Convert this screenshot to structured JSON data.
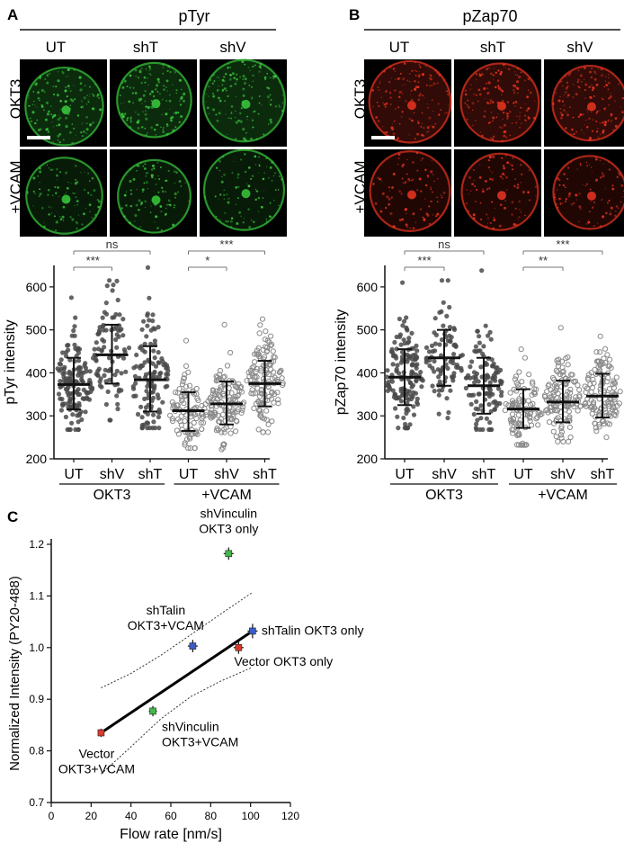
{
  "panel_letters": {
    "a": "A",
    "b": "B",
    "c": "C"
  },
  "colors": {
    "green_channel": "#36c23a",
    "red_channel": "#e0321f",
    "marker_green": "#43b649",
    "marker_blue": "#3a5cc4",
    "marker_red": "#d83a2c",
    "dot_dark": "#4a4a4a",
    "dot_open": "#8a8a8a"
  },
  "panel_a": {
    "title": "pTyr",
    "columns": [
      "UT",
      "shT",
      "shV"
    ],
    "rows": [
      "OKT3",
      "+VCAM"
    ]
  },
  "panel_b": {
    "title": "pZap70",
    "columns": [
      "UT",
      "shT",
      "shV"
    ],
    "rows": [
      "OKT3",
      "+VCAM"
    ]
  },
  "chart_data": [
    {
      "type": "scatter",
      "title": "",
      "xlabel": "",
      "ylabel": "pTyr intensity",
      "ylim": [
        200,
        650
      ],
      "yticks": [
        200,
        300,
        400,
        500,
        600
      ],
      "categories": [
        "UT",
        "shV",
        "shT",
        "UT",
        "shV",
        "shT"
      ],
      "groups": [
        {
          "label": "OKT3",
          "span": [
            0,
            2
          ]
        },
        {
          "label": "+VCAM",
          "span": [
            3,
            5
          ]
        }
      ],
      "series": [
        {
          "category": "UT",
          "group": "OKT3",
          "marker": "filled",
          "mean": 373,
          "sd_low": 315,
          "sd_high": 435,
          "min": 268,
          "max": 575,
          "n": 150,
          "seed": 11
        },
        {
          "category": "shV",
          "group": "OKT3",
          "marker": "filled",
          "mean": 442,
          "sd_low": 375,
          "sd_high": 512,
          "min": 290,
          "max": 615,
          "n": 90,
          "seed": 23
        },
        {
          "category": "shT",
          "group": "OKT3",
          "marker": "filled",
          "mean": 384,
          "sd_low": 310,
          "sd_high": 462,
          "min": 272,
          "max": 645,
          "n": 120,
          "seed": 37
        },
        {
          "category": "UT",
          "group": "+VCAM",
          "marker": "open",
          "mean": 312,
          "sd_low": 265,
          "sd_high": 355,
          "min": 225,
          "max": 475,
          "n": 100,
          "seed": 41
        },
        {
          "category": "shV",
          "group": "+VCAM",
          "marker": "open",
          "mean": 328,
          "sd_low": 280,
          "sd_high": 380,
          "min": 222,
          "max": 512,
          "n": 130,
          "seed": 53
        },
        {
          "category": "shT",
          "group": "+VCAM",
          "marker": "open",
          "mean": 375,
          "sd_low": 322,
          "sd_high": 428,
          "min": 262,
          "max": 525,
          "n": 130,
          "seed": 67
        }
      ],
      "significance": [
        {
          "label": "ns",
          "from": 0,
          "to": 2
        },
        {
          "label": "***",
          "from": 0,
          "to": 1
        },
        {
          "label": "***",
          "from": 3,
          "to": 5
        },
        {
          "label": "*",
          "from": 3,
          "to": 4
        }
      ]
    },
    {
      "type": "scatter",
      "title": "",
      "xlabel": "",
      "ylabel": "pZap70 intensity",
      "ylim": [
        200,
        650
      ],
      "yticks": [
        200,
        300,
        400,
        500,
        600
      ],
      "categories": [
        "UT",
        "shV",
        "shT",
        "UT",
        "shV",
        "shT"
      ],
      "groups": [
        {
          "label": "OKT3",
          "span": [
            0,
            2
          ]
        },
        {
          "label": "+VCAM",
          "span": [
            3,
            5
          ]
        }
      ],
      "series": [
        {
          "category": "UT",
          "group": "OKT3",
          "marker": "filled",
          "mean": 390,
          "sd_low": 325,
          "sd_high": 455,
          "min": 272,
          "max": 610,
          "n": 150,
          "seed": 71
        },
        {
          "category": "shV",
          "group": "OKT3",
          "marker": "filled",
          "mean": 435,
          "sd_low": 370,
          "sd_high": 500,
          "min": 295,
          "max": 615,
          "n": 90,
          "seed": 83
        },
        {
          "category": "shT",
          "group": "OKT3",
          "marker": "filled",
          "mean": 370,
          "sd_low": 305,
          "sd_high": 435,
          "min": 268,
          "max": 638,
          "n": 110,
          "seed": 97
        },
        {
          "category": "UT",
          "group": "+VCAM",
          "marker": "open",
          "mean": 316,
          "sd_low": 272,
          "sd_high": 362,
          "min": 232,
          "max": 455,
          "n": 100,
          "seed": 101
        },
        {
          "category": "shV",
          "group": "+VCAM",
          "marker": "open",
          "mean": 332,
          "sd_low": 285,
          "sd_high": 382,
          "min": 240,
          "max": 505,
          "n": 130,
          "seed": 113
        },
        {
          "category": "shT",
          "group": "+VCAM",
          "marker": "open",
          "mean": 346,
          "sd_low": 296,
          "sd_high": 398,
          "min": 250,
          "max": 485,
          "n": 130,
          "seed": 127
        }
      ],
      "significance": [
        {
          "label": "ns",
          "from": 0,
          "to": 2
        },
        {
          "label": "***",
          "from": 0,
          "to": 1
        },
        {
          "label": "***",
          "from": 3,
          "to": 5
        },
        {
          "label": "**",
          "from": 3,
          "to": 4
        }
      ]
    },
    {
      "type": "scatter",
      "title": "",
      "xlabel": "Flow rate [nm/s]",
      "ylabel": "Normalized Intensity (PY20-488)",
      "xlim": [
        0,
        120
      ],
      "ylim": [
        0.7,
        1.2
      ],
      "xticks": [
        0,
        20,
        40,
        60,
        80,
        100,
        120
      ],
      "yticks": [
        0.7,
        0.8,
        0.9,
        1.0,
        1.1,
        1.2
      ],
      "ytick_labels": [
        "0.7",
        "0.8",
        "0.9",
        "1.0",
        "1.1",
        "1.2"
      ],
      "points": [
        {
          "label": [
            "shVinculin",
            "OKT3 only"
          ],
          "x": 89,
          "y": 1.182,
          "xerr": 2.5,
          "yerr": 0.012,
          "color": "#43b649"
        },
        {
          "label": [
            "shTalin OKT3 only"
          ],
          "x": 101,
          "y": 1.032,
          "xerr": 2.5,
          "yerr": 0.014,
          "color": "#3a5cc4"
        },
        {
          "label": [
            "shTalin",
            "OKT3+VCAM"
          ],
          "x": 71,
          "y": 1.003,
          "xerr": 2.5,
          "yerr": 0.012,
          "color": "#3a5cc4"
        },
        {
          "label": [
            "Vector OKT3 only"
          ],
          "x": 94,
          "y": 1.0,
          "xerr": 2.5,
          "yerr": 0.012,
          "color": "#d83a2c"
        },
        {
          "label": [
            "shVinculin",
            "OKT3+VCAM"
          ],
          "x": 51,
          "y": 0.877,
          "xerr": 2.0,
          "yerr": 0.01,
          "color": "#43b649"
        },
        {
          "label": [
            "Vector",
            "OKT3+VCAM"
          ],
          "x": 25,
          "y": 0.835,
          "xerr": 1.5,
          "yerr": 0.008,
          "color": "#d83a2c"
        }
      ],
      "fit_line": {
        "x": [
          25,
          101
        ],
        "y": [
          0.835,
          1.032
        ]
      },
      "confidence_band": {
        "upper": {
          "x": [
            25,
            40,
            55,
            70,
            85,
            101
          ],
          "y": [
            0.922,
            0.95,
            0.985,
            1.025,
            1.065,
            1.107
          ]
        },
        "lower": {
          "x": [
            25,
            40,
            55,
            70,
            85,
            101
          ],
          "y": [
            0.755,
            0.808,
            0.862,
            0.905,
            0.935,
            0.962
          ]
        }
      }
    }
  ]
}
